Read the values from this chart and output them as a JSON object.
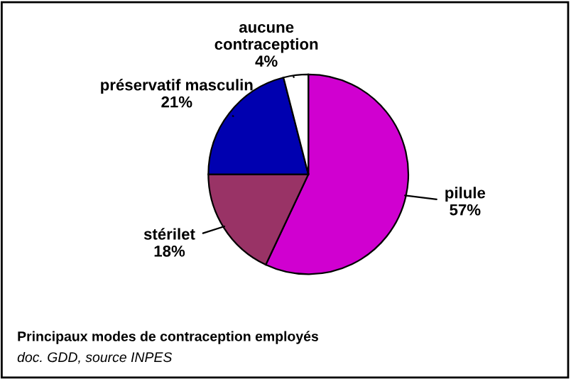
{
  "chart_data": {
    "type": "pie",
    "title": "Principaux modes de contraception employés",
    "annotations": [
      "doc. GDD, source INPES"
    ],
    "categories": [
      "pilule",
      "stérilet",
      "préservatif masculin",
      "aucune\ncontraception"
    ],
    "values": [
      57,
      18,
      21,
      4
    ],
    "value_labels": [
      "57%",
      "18%",
      "21%",
      "4%"
    ],
    "colors": [
      "#d000d0",
      "#993366",
      "#0000b0",
      "#ffffff"
    ],
    "legend": false
  }
}
